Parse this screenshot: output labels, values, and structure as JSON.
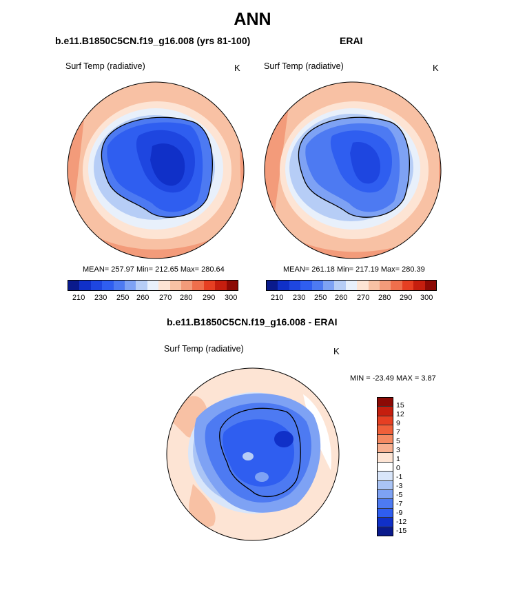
{
  "figure": {
    "title": "ANN"
  },
  "panels": [
    {
      "title": "b.e11.B1850C5CN.f19_g16.008 (yrs 81-100)",
      "variable": "Surf Temp (radiative)",
      "units": "K",
      "stats": "MEAN= 257.97  Min= 212.65  Max= 280.64",
      "colorbar_ticks": [
        "210",
        "230",
        "250",
        "260",
        "270",
        "280",
        "290",
        "300"
      ]
    },
    {
      "title": "ERAI",
      "variable": "Surf Temp (radiative)",
      "units": "K",
      "stats": "MEAN= 261.18  Min= 217.19  Max= 280.39",
      "colorbar_ticks": [
        "210",
        "230",
        "250",
        "260",
        "270",
        "280",
        "290",
        "300"
      ]
    },
    {
      "title": "b.e11.B1850C5CN.f19_g16.008 - ERAI",
      "variable": "Surf Temp (radiative)",
      "units": "K",
      "stats": "MIN = -23.49 MAX =   3.87",
      "colorbar_ticks": [
        "15",
        "12",
        "9",
        "7",
        "5",
        "3",
        "1",
        "0",
        "-1",
        "-3",
        "-5",
        "-7",
        "-9",
        "-12",
        "-15"
      ]
    }
  ],
  "colors": {
    "abs_scale": [
      "#0a1a8c",
      "#1030c8",
      "#1e46e0",
      "#2f5ef0",
      "#4d7af2",
      "#7ea2f4",
      "#b6cdf6",
      "#e8f0fb",
      "#fde4d4",
      "#f8c1a4",
      "#f39b7a",
      "#ef6f4c",
      "#e63f22",
      "#c51e0e",
      "#8c0a05"
    ],
    "diff_scale": [
      "#8c0a05",
      "#c51e0e",
      "#e63f22",
      "#f0603a",
      "#f58a62",
      "#f8b090",
      "#fde4d4",
      "#ffffff",
      "#d9e6fa",
      "#aac4f5",
      "#7ea2f4",
      "#4d7af2",
      "#2f5ef0",
      "#1030c8",
      "#0a1a8c"
    ]
  }
}
